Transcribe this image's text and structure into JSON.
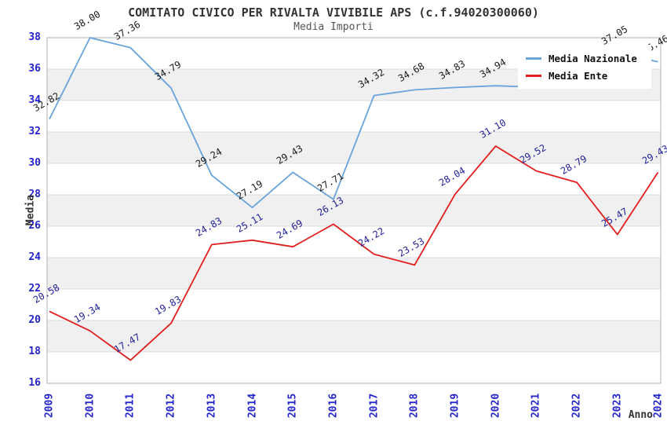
{
  "header": {
    "title": "COMITATO CIVICO PER RIVALTA VIVIBILE APS (c.f.94020300060)",
    "subtitle": "Media Importi"
  },
  "axes": {
    "y_label": "Media",
    "x_label": "Anno",
    "y_ticks": [
      38,
      36,
      34,
      32,
      30,
      28,
      26,
      24,
      22,
      20,
      18,
      16
    ],
    "x_ticks": [
      "2009",
      "2010",
      "2011",
      "2012",
      "2013",
      "2014",
      "2015",
      "2016",
      "2017",
      "2018",
      "2019",
      "2020",
      "2021",
      "2022",
      "2023",
      "2024"
    ]
  },
  "legend": {
    "items": [
      {
        "label": "Media Nazionale",
        "color": "#69a3dc"
      },
      {
        "label": "Media Ente",
        "color": "#e01f1f"
      }
    ]
  },
  "colors": {
    "tick_label": "#2424cc",
    "band": "#f0f0f0",
    "gridline": "#dcdcdc",
    "frame": "#b0b0b0",
    "title": "#333333",
    "subtitle": "#555555",
    "national_line": "#69a3dc",
    "entity_line": "#e01f1f",
    "national_label": "#1a1a1a",
    "entity_label": "#22229a"
  },
  "chart_data": {
    "type": "line",
    "title": "COMITATO CIVICO PER RIVALTA VIVIBILE APS (c.f.94020300060)",
    "subtitle": "Media Importi",
    "xlabel": "Anno",
    "ylabel": "Media",
    "x": [
      2009,
      2010,
      2011,
      2012,
      2013,
      2014,
      2015,
      2016,
      2017,
      2018,
      2019,
      2020,
      2021,
      2022,
      2023,
      2024
    ],
    "ylim": [
      16,
      38
    ],
    "ytick_step": 2,
    "grid": true,
    "band_fill": true,
    "legend_position": "top-right",
    "series": [
      {
        "name": "Media Nazionale",
        "color": "#69a3dc",
        "label_color": "#1a1a1a",
        "values": [
          32.82,
          38.0,
          37.36,
          34.79,
          29.24,
          27.19,
          29.43,
          27.71,
          34.32,
          34.68,
          34.83,
          34.94,
          34.85,
          34.9,
          37.05,
          36.46
        ],
        "labels": [
          "32.82",
          "38.00",
          "37.36",
          "34.79",
          "29.24",
          "27.19",
          "29.43",
          "27.71",
          "34.32",
          "34.68",
          "34.83",
          "34.94",
          "",
          "",
          "37.05",
          "36.46"
        ]
      },
      {
        "name": "Media Ente",
        "color": "#e01f1f",
        "label_color": "#22229a",
        "values": [
          20.58,
          19.34,
          17.47,
          19.83,
          24.83,
          25.11,
          24.69,
          26.13,
          24.22,
          23.53,
          28.04,
          31.1,
          29.52,
          28.79,
          25.47,
          29.43
        ],
        "labels": [
          "20.58",
          "19.34",
          "17.47",
          "19.83",
          "24.83",
          "25.11",
          "24.69",
          "26.13",
          "24.22",
          "23.53",
          "28.04",
          "31.10",
          "29.52",
          "28.79",
          "25.47",
          "29.43"
        ]
      }
    ]
  }
}
